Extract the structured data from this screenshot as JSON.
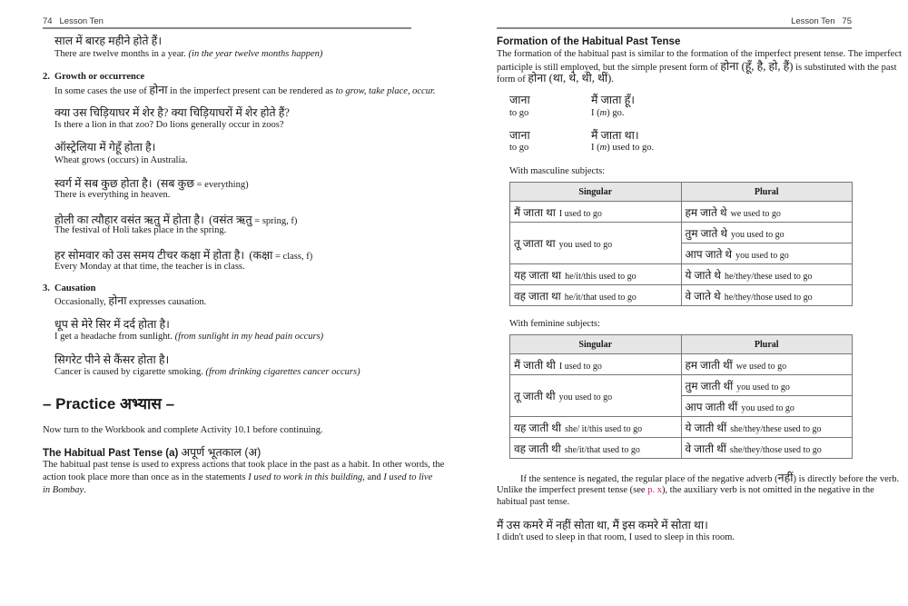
{
  "left_page": {
    "header": {
      "page_number": "74",
      "title": "Lesson Ten"
    },
    "ex1": {
      "hindi": "साल में बारह महीने होते हैं।",
      "english": "There are twelve months in a year. ",
      "literal": "(in the year twelve months happen)"
    },
    "section2": {
      "number": "2.",
      "title": "Growth or occurrence",
      "text_a": "In some cases the use of ",
      "hindi_word": "होना",
      "text_b": " in the imperfect present can be rendered as ",
      "italic": "to grow, take place, occur."
    },
    "ex2": {
      "hindi": "क्या उस चिड़ियाघर में शेर है? क्या चिड़ियाघरों में शेर होते हैं?",
      "english": "Is there a lion in that zoo? Do lions generally occur in zoos?"
    },
    "ex3": {
      "hindi": "ऑस्ट्रेलिया में गेहूँ होता है।",
      "english": "Wheat grows (occurs) in Australia."
    },
    "ex4": {
      "hindi": "स्वर्ग में सब कुछ होता है।",
      "gloss_hindi": "(सब कुछ",
      "gloss": " = everything)",
      "english": "There is everything in heaven."
    },
    "ex5": {
      "hindi": "होली का त्यौहार वसंत ऋतु में होता है।",
      "gloss_hindi": "(वसंत ऋतु",
      "gloss": " = spring, f)",
      "english": "The festival of Holi takes place in the spring."
    },
    "ex6": {
      "hindi": "हर सोमवार को उस समय टीचर कक्षा में होता है।",
      "gloss_hindi": "(कक्षा",
      "gloss": " = class, f)",
      "english": "Every Monday at that time, the teacher is in class."
    },
    "section3": {
      "number": "3.",
      "title": "Causation",
      "text_a": "Occasionally, ",
      "hindi_word": "होना",
      "text_b": " expresses causation."
    },
    "ex7": {
      "hindi": "धूप से मेरे सिर में दर्द होता है।",
      "english": "I get a headache from sunlight. ",
      "literal": "(from sunlight in my head pain occurs)"
    },
    "ex8": {
      "hindi": "सिगरेट पीने से कैंसर होता है।",
      "english": "Cancer is caused by cigarette smoking. ",
      "literal": "(from drinking cigarettes cancer occurs)"
    },
    "practice": {
      "title": "– Practice  अभ्यास –",
      "text": "Now turn to the Workbook and complete Activity 10.1 before continuing."
    },
    "habitual": {
      "heading": "The Habitual Past Tense (a) ",
      "heading_hindi": "अपूर्ण भूतकाल (अ)",
      "line1": "The habitual past tense is used to express actions that took place in the past as a habit. In other words, the",
      "line2_a": "action took place more than once as in the statements ",
      "line2_i1": "I used to work in this building",
      "line2_b": ", and ",
      "line2_i2": "I used to live",
      "line3_i": "in Bombay",
      "line3_b": "."
    }
  },
  "right_page": {
    "header": {
      "title": "Lesson Ten",
      "page_number": "75"
    },
    "formation": {
      "heading": "Formation of the Habitual Past Tense",
      "line1": "The formation of the habitual past is similar to the formation of the imperfect present tense. The imperfect",
      "line2_a": "participle is still employed, but the simple present form of ",
      "line2_hindi": "होना (हूँ, है, हो, हैं)",
      "line2_b": " is substituted with the past",
      "line3_a": "form of ",
      "line3_hindi": "होना (था, थे, थी, थीं)",
      "line3_b": "."
    },
    "examples": [
      {
        "infinitive": "जाना",
        "inf_gloss": "to go",
        "sentence": "मैं जाता हूँ।",
        "gloss_a": "I (",
        "gloss_i": "m",
        "gloss_b": ") go."
      },
      {
        "infinitive": "जाना",
        "inf_gloss": "to go",
        "sentence": "मैं जाता था।",
        "gloss_a": "I (",
        "gloss_i": "m",
        "gloss_b": ") used to go."
      }
    ],
    "masculine": {
      "label": "With masculine subjects:",
      "headers": [
        "Singular",
        "Plural"
      ],
      "rows": [
        {
          "sg_hi": "मैं जाता था",
          "sg_en": "I used to go",
          "pl_hi": "हम जाते थे",
          "pl_en": "we used to go"
        },
        {
          "sg_hi": "तू जाता था",
          "sg_en": "you used to go",
          "pl_hi": "तुम जाते थे",
          "pl_en": "you used to go",
          "pl2_hi": "आप जाते थे",
          "pl2_en": "you used to go"
        },
        {
          "sg_hi": "यह जाता था",
          "sg_en": "he/it/this used to go",
          "pl_hi": "ये जाते थे",
          "pl_en": "he/they/these used to go"
        },
        {
          "sg_hi": "वह जाता था",
          "sg_en": "he/it/that used to go",
          "pl_hi": "वे जाते थे",
          "pl_en": "he/they/those used to go"
        }
      ]
    },
    "feminine": {
      "label": "With feminine subjects:",
      "headers": [
        "Singular",
        "Plural"
      ],
      "rows": [
        {
          "sg_hi": "मैं जाती थी",
          "sg_en": "I used to go",
          "pl_hi": "हम जाती थीं",
          "pl_en": "we used to go"
        },
        {
          "sg_hi": "तू जाती थी",
          "sg_en": "you used to go",
          "pl_hi": "तुम जाती थीं",
          "pl_en": "you used to go",
          "pl2_hi": "आप जाती थीं",
          "pl2_en": "you used to go"
        },
        {
          "sg_hi": "यह जाती थी",
          "sg_en": "she/ it/this used to go",
          "pl_hi": "ये जाती थीं",
          "pl_en": "she/they/these used to go"
        },
        {
          "sg_hi": "वह जाती थी",
          "sg_en": "she/it/that used to go",
          "pl_hi": "वे जाती थीं",
          "pl_en": "she/they/those used to go"
        }
      ]
    },
    "negation": {
      "line1_a": "If the sentence is negated, the regular place of the negative adverb (",
      "line1_hindi": "नहीं",
      "line1_b": ") is directly before the verb.",
      "line2_a": "Unlike the imperfect present tense (see ",
      "link": "p. x",
      "line2_b": "), the auxiliary verb is not omitted in the negative in the",
      "line3": "habitual past tense.",
      "link_color": "#d0208a"
    },
    "ex_final": {
      "hindi": "मैं उस कमरे में नहीं सोता था, मैं इस कमरे में सोता था।",
      "english": "I didn't used to sleep in that room, I used to sleep in this room."
    }
  }
}
